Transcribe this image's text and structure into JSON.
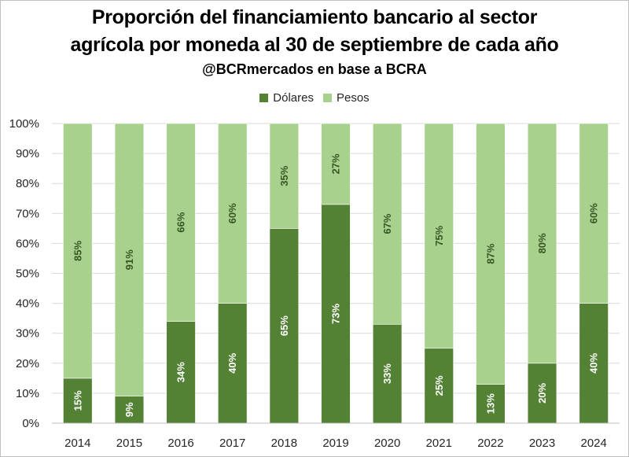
{
  "chart_data": {
    "type": "bar",
    "stacked": true,
    "orientation": "vertical",
    "title": "Proporción del financiamiento bancario al sector",
    "title_line2": "agrícola por moneda al 30 de septiembre de cada año",
    "subtitle": "@BCRmercados en base a BCRA",
    "categories": [
      "2014",
      "2015",
      "2016",
      "2017",
      "2018",
      "2019",
      "2020",
      "2021",
      "2022",
      "2023",
      "2024"
    ],
    "series": [
      {
        "name": "Dólares",
        "color": "#548235",
        "values": [
          15,
          9,
          34,
          40,
          65,
          73,
          33,
          25,
          13,
          20,
          40
        ],
        "labels": [
          "15%",
          "9%",
          "34%",
          "40%",
          "65%",
          "73%",
          "33%",
          "25%",
          "13%",
          "20%",
          "40%"
        ]
      },
      {
        "name": "Pesos",
        "color": "#a9d18e",
        "values": [
          85,
          91,
          66,
          60,
          35,
          27,
          67,
          75,
          87,
          80,
          60
        ],
        "labels": [
          "85%",
          "91%",
          "66%",
          "60%",
          "35%",
          "27%",
          "67%",
          "75%",
          "87%",
          "80%",
          "60%"
        ]
      }
    ],
    "yticks": [
      "0%",
      "10%",
      "20%",
      "30%",
      "40%",
      "50%",
      "60%",
      "70%",
      "80%",
      "90%",
      "100%"
    ],
    "ylim": [
      0,
      100
    ],
    "grid": true,
    "legend_position": "top"
  }
}
